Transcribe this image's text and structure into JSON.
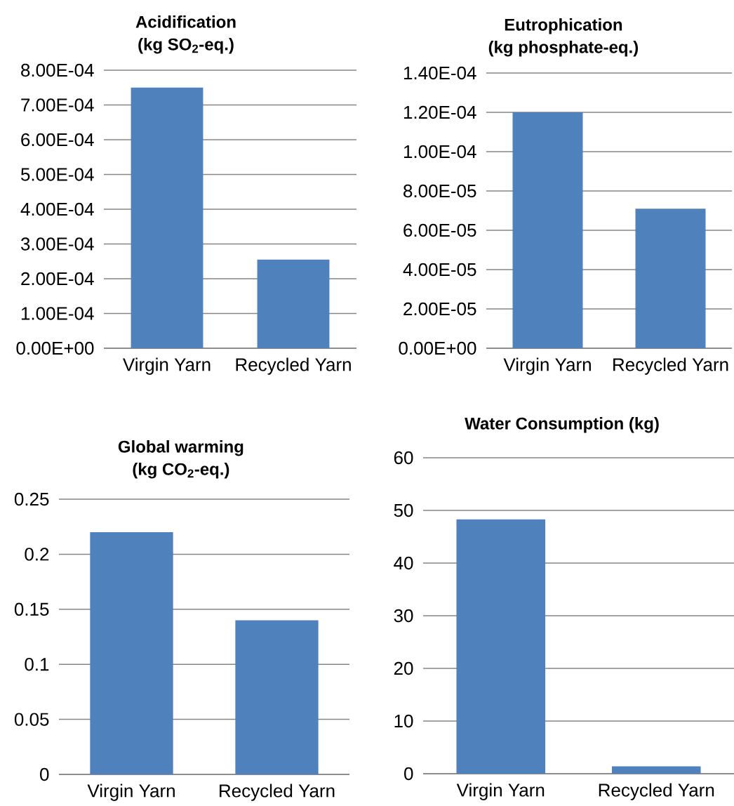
{
  "chart_data": [
    {
      "type": "bar",
      "title": "Acidification",
      "subtitle": "(kg SO$_{2}$-eq.)",
      "categories": [
        "Virgin Yarn",
        "Recycled Yarn"
      ],
      "values": [
        0.00075,
        0.000255
      ],
      "color": "#4f81bd",
      "ylim": [
        0,
        0.0008
      ],
      "yticks": [
        {
          "value": 0,
          "label": "0.00E+00"
        },
        {
          "value": 0.0001,
          "label": "1.00E-04"
        },
        {
          "value": 0.0002,
          "label": "2.00E-04"
        },
        {
          "value": 0.0003,
          "label": "3.00E-04"
        },
        {
          "value": 0.0004,
          "label": "4.00E-04"
        },
        {
          "value": 0.0005,
          "label": "5.00E-04"
        },
        {
          "value": 0.0006,
          "label": "6.00E-04"
        },
        {
          "value": 0.0007,
          "label": "7.00E-04"
        },
        {
          "value": 0.0008,
          "label": "8.00E-04"
        }
      ],
      "grid": "y"
    },
    {
      "type": "bar",
      "title": "Eutrophication",
      "subtitle": "(kg phosphate-eq.)",
      "categories": [
        "Virgin Yarn",
        "Recycled Yarn"
      ],
      "values": [
        0.00012,
        7.1e-05
      ],
      "color": "#4f81bd",
      "ylim": [
        0,
        0.00014
      ],
      "yticks": [
        {
          "value": 0,
          "label": "0.00E+00"
        },
        {
          "value": 2e-05,
          "label": "2.00E-05"
        },
        {
          "value": 4e-05,
          "label": "4.00E-05"
        },
        {
          "value": 6e-05,
          "label": "6.00E-05"
        },
        {
          "value": 8e-05,
          "label": "8.00E-05"
        },
        {
          "value": 0.0001,
          "label": "1.00E-04"
        },
        {
          "value": 0.00012,
          "label": "1.20E-04"
        },
        {
          "value": 0.00014,
          "label": "1.40E-04"
        }
      ],
      "grid": "y"
    },
    {
      "type": "bar",
      "title": "Global warming",
      "subtitle": "(kg CO$_{2}$-eq.)",
      "categories": [
        "Virgin Yarn",
        "Recycled Yarn"
      ],
      "values": [
        0.22,
        0.14
      ],
      "color": "#4f81bd",
      "ylim": [
        0,
        0.25
      ],
      "yticks": [
        0,
        0.05,
        0.1,
        0.15,
        0.2,
        0.25
      ],
      "grid": "y"
    },
    {
      "type": "bar",
      "title": "Water Consumption (kg)",
      "categories": [
        "Virgin Yarn",
        "Recycled Yarn"
      ],
      "values": [
        48.3,
        1.4
      ],
      "color": "#4f81bd",
      "ylim": [
        0,
        60
      ],
      "yticks": [
        0,
        10,
        20,
        30,
        40,
        50,
        60
      ],
      "grid": "y"
    }
  ]
}
